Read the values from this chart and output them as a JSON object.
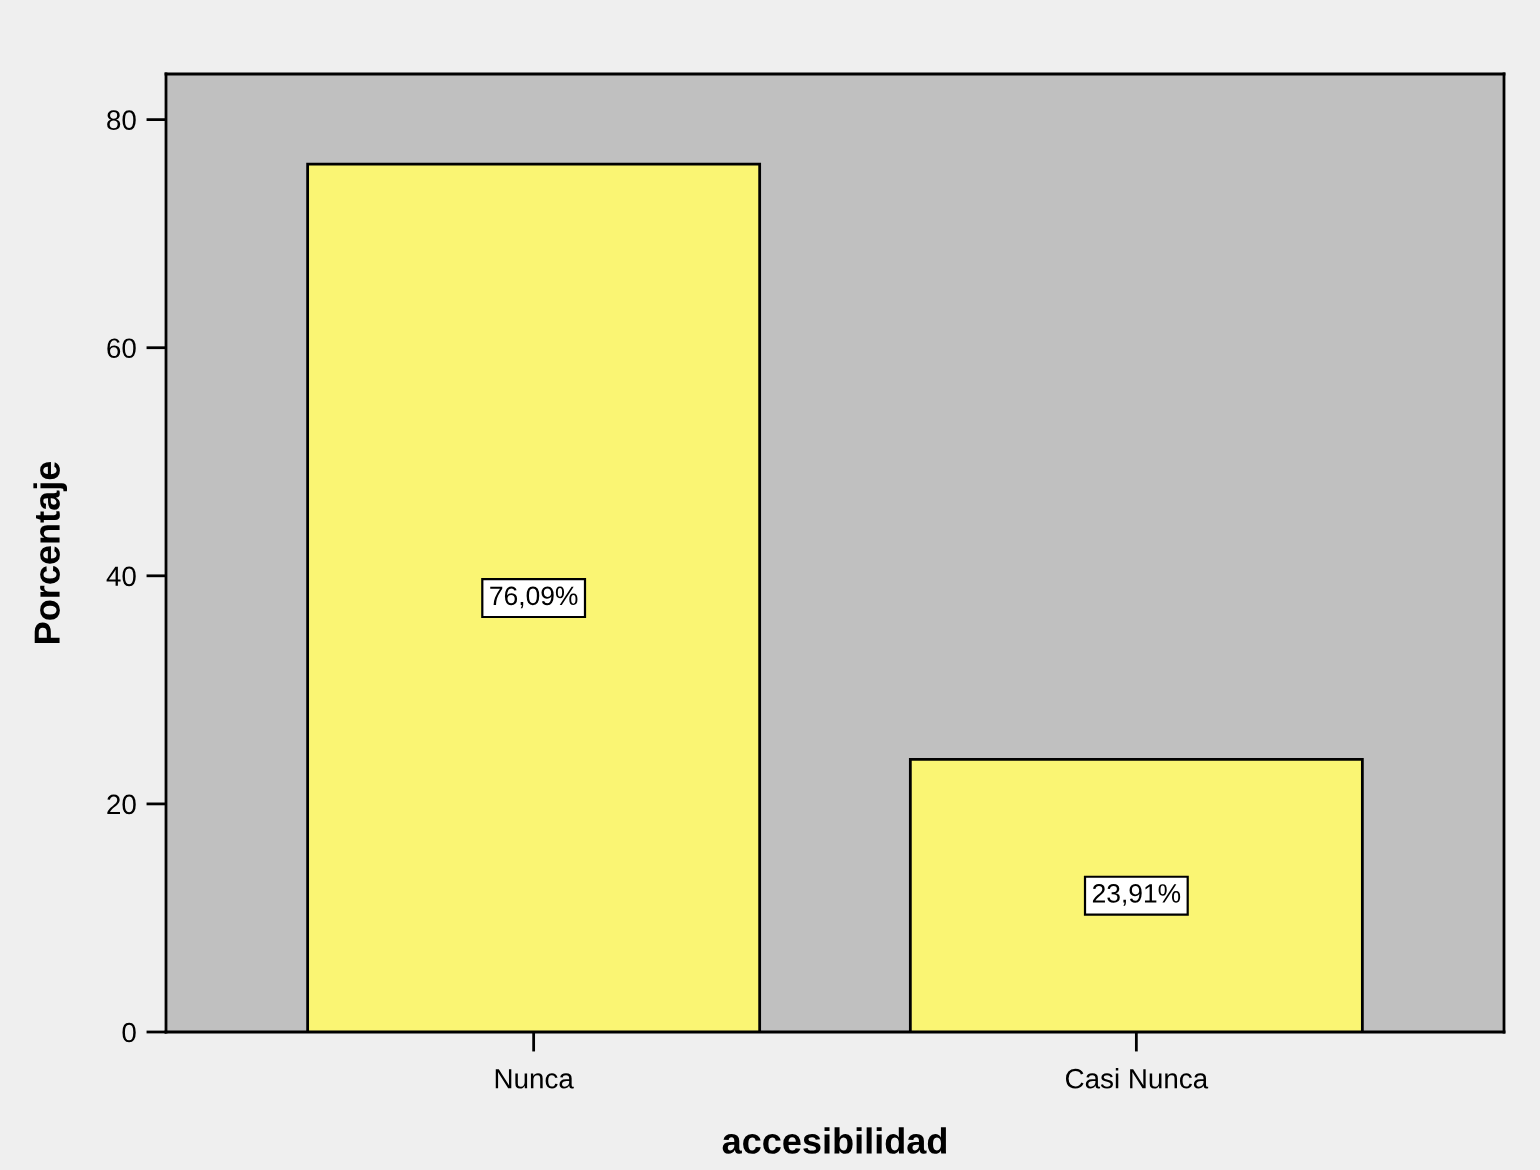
{
  "chart_data": {
    "type": "bar",
    "xlabel": "accesibilidad",
    "ylabel": "Porcentaje",
    "categories": [
      "Nunca",
      "Casi Nunca"
    ],
    "values": [
      76.09,
      23.91
    ],
    "color": "#faf573",
    "value_labels": [
      "76,09%",
      "23,91%"
    ],
    "ylim": [
      0,
      84
    ],
    "yticks": [
      0,
      20,
      40,
      60,
      80
    ]
  }
}
